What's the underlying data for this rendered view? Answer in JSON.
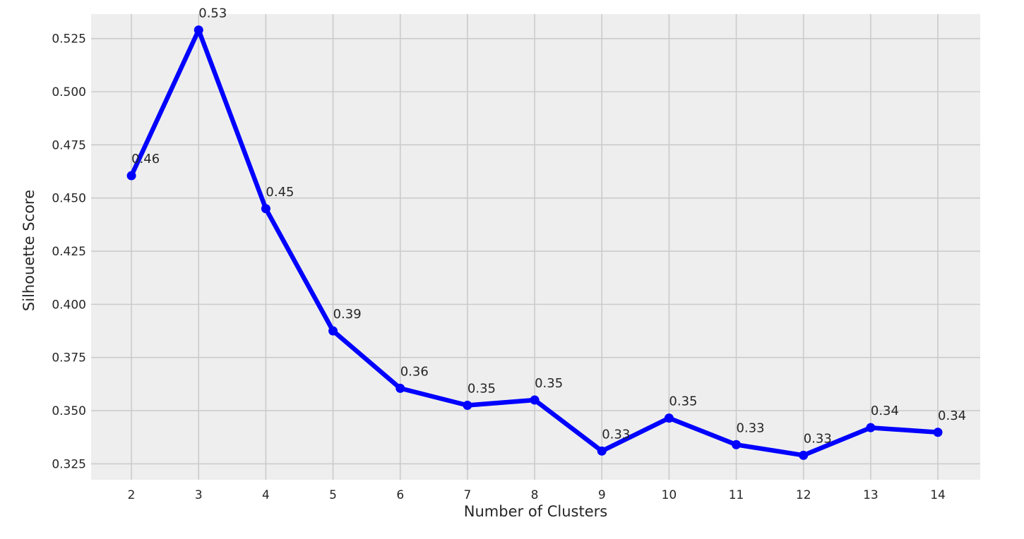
{
  "chart_data": {
    "type": "line",
    "title": "",
    "xlabel": "Number of Clusters",
    "ylabel": "Silhouette Score",
    "x": [
      2,
      3,
      4,
      5,
      6,
      7,
      8,
      9,
      10,
      11,
      12,
      13,
      14
    ],
    "y": [
      0.4605,
      0.529,
      0.445,
      0.3875,
      0.3605,
      0.3525,
      0.355,
      0.331,
      0.3465,
      0.334,
      0.329,
      0.342,
      0.3398
    ],
    "data_labels": [
      "0.46",
      "0.53",
      "0.45",
      "0.39",
      "0.36",
      "0.35",
      "0.35",
      "0.33",
      "0.35",
      "0.33",
      "0.33",
      "0.34",
      "0.34"
    ],
    "x_ticks": [
      "2",
      "3",
      "4",
      "5",
      "6",
      "7",
      "8",
      "9",
      "10",
      "11",
      "12",
      "13",
      "14"
    ],
    "y_ticks": [
      0.325,
      0.35,
      0.375,
      0.4,
      0.425,
      0.45,
      0.475,
      0.5,
      0.525
    ],
    "y_tick_labels": [
      "0.325",
      "0.350",
      "0.375",
      "0.400",
      "0.425",
      "0.450",
      "0.475",
      "0.500",
      "0.525"
    ],
    "xlim": [
      1.4,
      14.63
    ],
    "ylim": [
      0.3175,
      0.5365
    ],
    "grid": true,
    "colors": {
      "line": "#0000ff",
      "background": "#eeeeee",
      "grid": "#cbcbcb",
      "text": "#262626"
    }
  }
}
